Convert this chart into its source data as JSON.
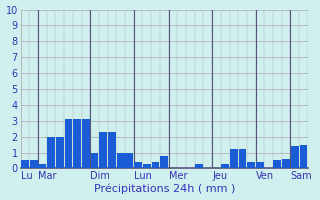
{
  "bars": [
    0.5,
    0.5,
    0.3,
    2.0,
    2.0,
    3.1,
    3.1,
    3.1,
    1.0,
    2.3,
    2.3,
    1.0,
    1.0,
    0.4,
    0.3,
    0.4,
    0.8,
    0.0,
    0.0,
    0.0,
    0.3,
    0.0,
    0.0,
    0.3,
    1.2,
    1.2,
    0.4,
    0.4,
    0.0,
    0.5,
    0.6,
    1.4,
    1.5
  ],
  "n_bars": 33,
  "day_labels": [
    "Lu",
    "Mar",
    "Dim",
    "Lun",
    "Mer",
    "Jeu",
    "Ven",
    "Sam"
  ],
  "day_tick_positions": [
    0,
    2,
    8,
    13,
    17,
    22,
    27,
    31
  ],
  "xlabel": "Précipitations 24h ( mm )",
  "ylim": [
    0,
    10
  ],
  "yticks": [
    0,
    1,
    2,
    3,
    4,
    5,
    6,
    7,
    8,
    9,
    10
  ],
  "bar_color": "#1a5cd6",
  "background_color": "#d0f0f0",
  "grid_color": "#aaaaaa",
  "separator_color": "#555577",
  "tick_color": "#3333bb",
  "xlabel_color": "#3333bb",
  "xlabel_fontsize": 8,
  "ytick_fontsize": 7,
  "xtick_fontsize": 7,
  "separator_positions": [
    2,
    8,
    13,
    17,
    22,
    27,
    31
  ]
}
